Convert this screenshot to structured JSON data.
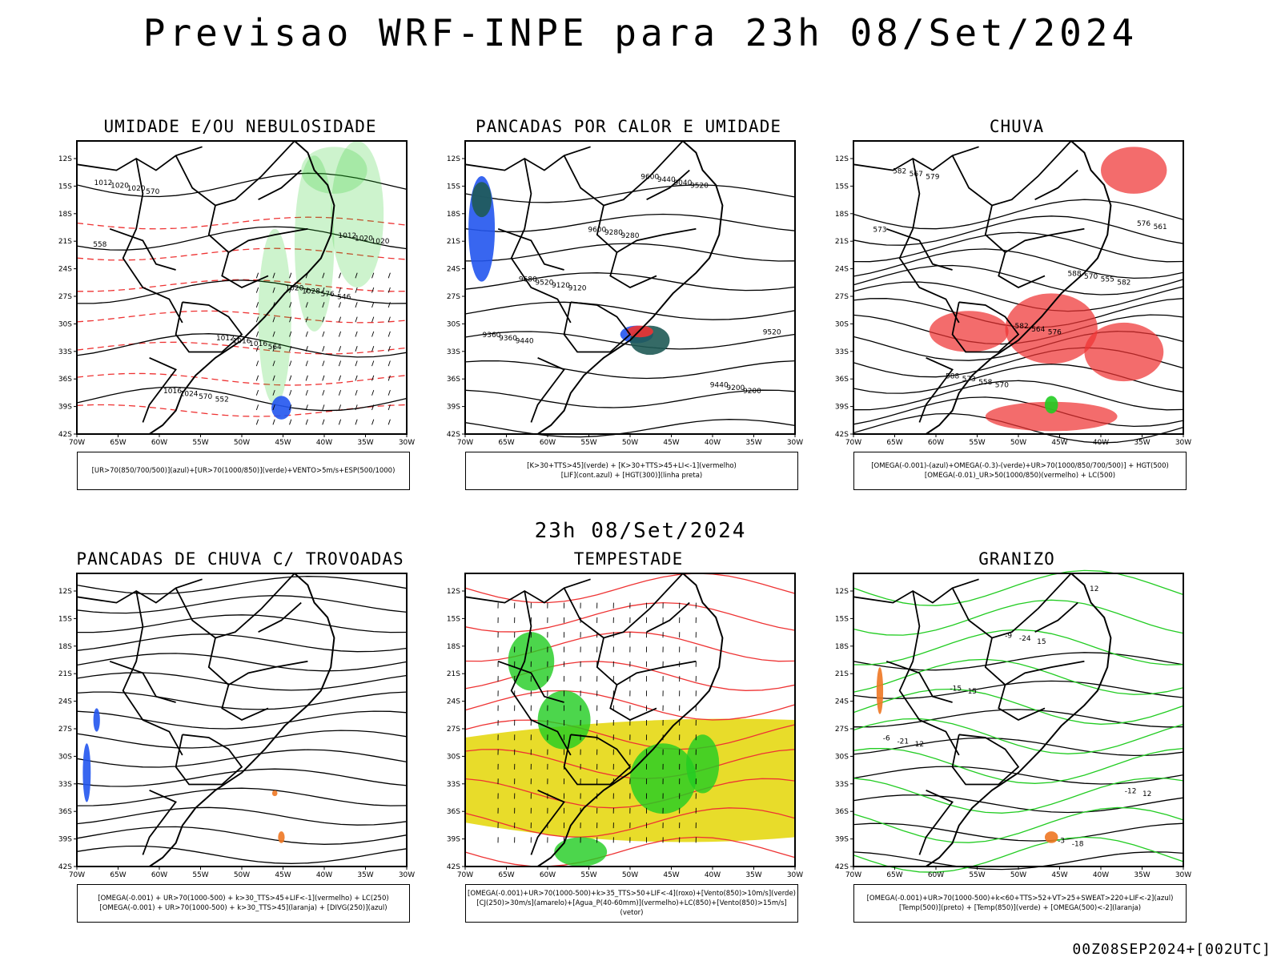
{
  "header": {
    "title": "Previsao WRF-INPE  para 23h 08/Set/2024"
  },
  "middle_date": "23h 08/Set/2024",
  "footer": {
    "run": "00Z08SEP2024+[002UTC]"
  },
  "axis": {
    "lat_labels": [
      "12S",
      "15S",
      "18S",
      "21S",
      "24S",
      "27S",
      "30S",
      "33S",
      "36S",
      "39S",
      "42S"
    ],
    "lon_labels": [
      "70W",
      "65W",
      "60W",
      "55W",
      "50W",
      "45W",
      "40W",
      "35W",
      "30W"
    ]
  },
  "panels": [
    {
      "id": "umidade",
      "title": "UMIDADE E/OU NEBULOSIDADE",
      "legend": [
        "[UR>70(850/700/500)](azul)+[UR>70(1000/850)](verde)+VENTO>5m/s+ESP(500/1000)"
      ],
      "contour_labels": [
        "1012",
        "1012",
        "1012",
        "1016",
        "1020",
        "1020",
        "1016",
        "1020",
        "1024",
        "1028",
        "1020",
        "1016",
        "1020",
        "570",
        "576",
        "570",
        "564",
        "558",
        "552",
        "546"
      ]
    },
    {
      "id": "pancadas_calor",
      "title": "PANCADAS POR CALOR E UMIDADE",
      "legend": [
        "[K>30+TTS>45](verde) + [K>30+TTS>45+LI<-1](vermelho)",
        "[LIF](cont.azul) + [HGT(300)](linha preta)"
      ],
      "contour_labels": [
        "9680",
        "9600",
        "9520",
        "9600",
        "9440",
        "9520",
        "9440",
        "9360",
        "9280",
        "9200",
        "9120",
        "9040",
        "9360",
        "9280",
        "9200",
        "9120",
        "9520",
        "9440"
      ]
    },
    {
      "id": "chuva",
      "title": "CHUVA",
      "legend": [
        "[OMEGA(-0.001)-(azul)+OMEGA(-0.3)-(verde)+UR>70(1000/850/700/500)] + HGT(500)",
        "[OMEGA(-0.01)_UR>50(1000/850)(vermelho) + LC(500)"
      ],
      "contour_labels": [
        "588",
        "588",
        "582",
        "582",
        "576",
        "573",
        "570",
        "567",
        "564",
        "561",
        "558",
        "555",
        "579",
        "576",
        "573",
        "570",
        "582"
      ]
    },
    {
      "id": "trovoadas",
      "title": "PANCADAS DE CHUVA C/ TROVOADAS",
      "legend": [
        "[OMEGA(-0.001) + UR>70(1000-500) + k>30_TTS>45+LIF<-1](vermelho) + LC(250)",
        "[OMEGA(-0.001) + UR>70(1000-500) + k>30_TTS>45](laranja) + [DIVG(250)](azul)"
      ],
      "contour_labels": []
    },
    {
      "id": "tempestade",
      "title": "TEMPESTADE",
      "legend": [
        "[OMEGA(-0.001)+UR>70(1000-500)+k>35_TTS>50+LIF<-4](roxo)+[Vento(850)>10m/s](verde)",
        "[CJ(250)>30m/s](amarelo)+[Agua_P(40-60mm)](vermelho)+LC(850)+[Vento(850)>15m/s](vetor)"
      ],
      "contour_labels": []
    },
    {
      "id": "granizo",
      "title": "GRANIZO",
      "legend": [
        "[OMEGA(-0.001)+UR>70(1000-500)+k<60+TTS>52+VT>25+SWEAT>220+LIF<-2](azul)",
        "[Temp(500)](preto) + [Temp(850)](verde) + [OMEGA(500)<-2](laranja)"
      ],
      "contour_labels": [
        "-3",
        "-6",
        "-9",
        "-12",
        "-15",
        "-18",
        "-21",
        "-24",
        "12",
        "15",
        "12",
        "12",
        "15"
      ]
    }
  ],
  "colors": {
    "red": "#ee3333",
    "green": "#22cc22",
    "blue": "#2255ee",
    "yellow": "#e8dc2a",
    "teal": "#1f5a55",
    "orange": "#ee7722",
    "black": "#000000"
  }
}
